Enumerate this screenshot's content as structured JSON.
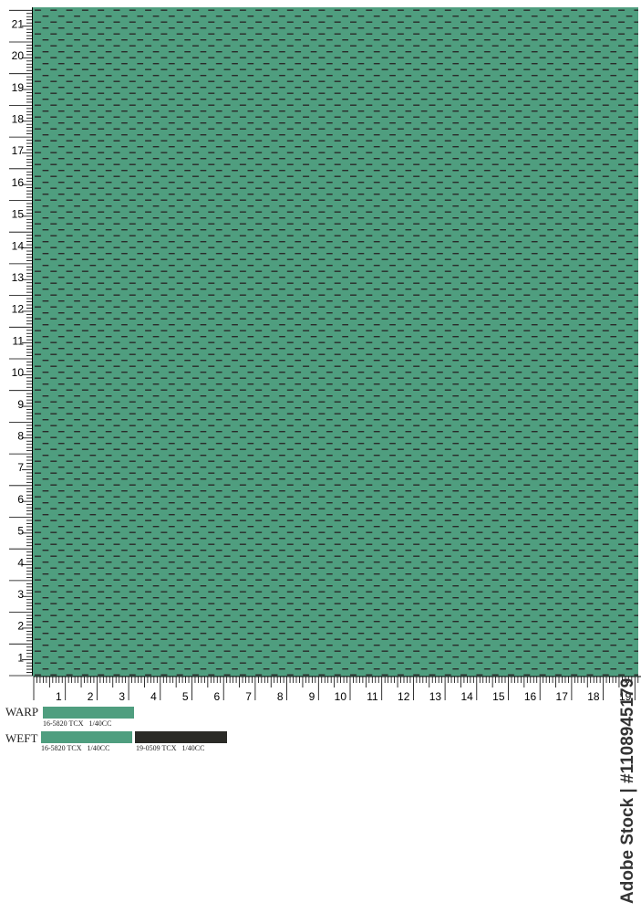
{
  "fabric": {
    "base_color": "#4f9e7f",
    "dash_color": "#2a2a2a"
  },
  "vertical_ruler": {
    "labels": [
      "1",
      "2",
      "3",
      "4",
      "5",
      "6",
      "7",
      "8",
      "9",
      "10",
      "11",
      "12",
      "13",
      "14",
      "15",
      "16",
      "17",
      "18",
      "19",
      "20",
      "21"
    ]
  },
  "horizontal_ruler": {
    "labels": [
      "1",
      "2",
      "3",
      "4",
      "5",
      "6",
      "7",
      "8",
      "9",
      "10",
      "11",
      "12",
      "13",
      "14",
      "15",
      "16",
      "17",
      "18",
      "19"
    ]
  },
  "legend": {
    "warp": {
      "label": "WARP",
      "yarns": [
        {
          "color": "#4f9e7f",
          "code": "16-5820 TCX   1/40CC"
        }
      ]
    },
    "weft": {
      "label": "WEFT",
      "yarns": [
        {
          "color": "#4f9e7f",
          "code": "16-5820 TCX   1/40CC"
        },
        {
          "color": "#2b2b27",
          "code": "19-0509 TCX   1/40CC"
        }
      ]
    }
  },
  "watermark": "Adobe Stock | #1108945179"
}
